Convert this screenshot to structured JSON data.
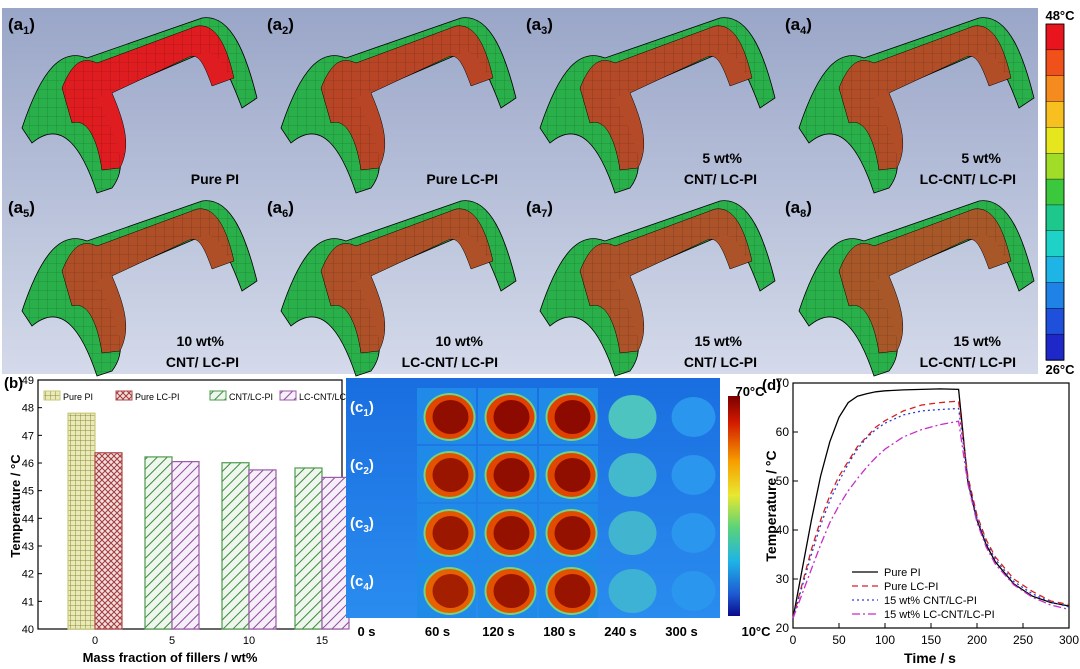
{
  "panel_a": {
    "colorbar": {
      "max_label": "48°C",
      "min_label": "26°C",
      "colors": [
        "#e8141e",
        "#f0501a",
        "#f58a1e",
        "#f7c020",
        "#e6e61e",
        "#a0dc28",
        "#3cc83c",
        "#1ec88c",
        "#1ed2c8",
        "#1eb4e6",
        "#1e82e6",
        "#1e50dc",
        "#1e28c8"
      ]
    },
    "tiles": [
      {
        "letter": "a",
        "sub": "1",
        "line1": "",
        "line2": "Pure PI",
        "hot": 0.95
      },
      {
        "letter": "a",
        "sub": "2",
        "line1": "",
        "line2": "Pure LC-PI",
        "hot": 0.72
      },
      {
        "letter": "a",
        "sub": "3",
        "line1": "5 wt%",
        "line2": "CNT/ LC-PI",
        "hot": 0.7
      },
      {
        "letter": "a",
        "sub": "4",
        "line1": "5 wt%",
        "line2": "LC-CNT/ LC-PI",
        "hot": 0.68
      },
      {
        "letter": "a",
        "sub": "5",
        "line1": "10 wt%",
        "line2": "CNT/ LC-PI",
        "hot": 0.67
      },
      {
        "letter": "a",
        "sub": "6",
        "line1": "10 wt%",
        "line2": "LC-CNT/ LC-PI",
        "hot": 0.66
      },
      {
        "letter": "a",
        "sub": "7",
        "line1": "15 wt%",
        "line2": "CNT/ LC-PI",
        "hot": 0.65
      },
      {
        "letter": "a",
        "sub": "8",
        "line1": "15 wt%",
        "line2": "LC-CNT/ LC-PI",
        "hot": 0.63
      }
    ]
  },
  "panel_b": {
    "label": "(b)",
    "chart_data": {
      "type": "bar",
      "xlabel": "Mass fraction of fillers / wt%",
      "ylabel": "Temperature / °C",
      "ylim": [
        40,
        49
      ],
      "yticks": [
        "40",
        "41",
        "42",
        "43",
        "44",
        "45",
        "46",
        "47",
        "48",
        "49"
      ],
      "categories": [
        "0",
        "5",
        "10",
        "15"
      ],
      "series": [
        {
          "name": "Pure PI",
          "values": [
            47.8,
            null,
            null,
            null
          ],
          "color": "#c8c87a",
          "pattern": "grid"
        },
        {
          "name": "Pure LC-PI",
          "values": [
            46.37,
            null,
            null,
            null
          ],
          "color": "#b04a4a",
          "pattern": "cross"
        },
        {
          "name": "CNT/LC-PI",
          "values": [
            null,
            46.22,
            46.01,
            45.82
          ],
          "color": "#4e9a4e",
          "pattern": "diag"
        },
        {
          "name": "LC-CNT/LC-PI",
          "values": [
            null,
            46.05,
            45.75,
            45.48
          ],
          "color": "#9a5aa8",
          "pattern": "diag"
        }
      ],
      "legend": "top"
    }
  },
  "panel_c": {
    "colorbar": {
      "max_label": "70°C",
      "min_label": "10°C"
    },
    "time_labels": [
      "0 s",
      "60 s",
      "120 s",
      "180 s",
      "240 s",
      "300 s"
    ],
    "rows": [
      {
        "letter": "c",
        "sub": "1",
        "levels": [
          0.0,
          0.95,
          1.0,
          1.0,
          0.25,
          0.08
        ]
      },
      {
        "letter": "c",
        "sub": "2",
        "levels": [
          0.0,
          0.85,
          0.95,
          0.95,
          0.18,
          0.06
        ]
      },
      {
        "letter": "c",
        "sub": "3",
        "levels": [
          0.0,
          0.82,
          0.9,
          0.9,
          0.16,
          0.05
        ]
      },
      {
        "letter": "c",
        "sub": "4",
        "levels": [
          0.0,
          0.72,
          0.85,
          0.86,
          0.14,
          0.05
        ]
      }
    ]
  },
  "panel_d": {
    "label": "(d)",
    "chart_data": {
      "type": "line",
      "xlabel": "Time / s",
      "ylabel": "Temperature / °C",
      "xlim": [
        0,
        300
      ],
      "ylim": [
        20,
        70
      ],
      "xticks": [
        "0",
        "50",
        "100",
        "150",
        "200",
        "250",
        "300"
      ],
      "yticks": [
        "20",
        "30",
        "40",
        "50",
        "60",
        "70"
      ],
      "series": [
        {
          "name": "Pure PI",
          "color": "#000000",
          "dash": "",
          "x": [
            0,
            10,
            20,
            30,
            40,
            50,
            60,
            70,
            80,
            90,
            100,
            120,
            140,
            160,
            180,
            190,
            200,
            210,
            220,
            240,
            260,
            280,
            300
          ],
          "y": [
            22,
            32,
            42,
            51,
            58,
            63,
            66,
            67.3,
            67.8,
            68.2,
            68.4,
            68.6,
            68.7,
            68.8,
            68.7,
            50,
            42,
            37,
            33.5,
            29,
            26.5,
            25.2,
            24.5
          ]
        },
        {
          "name": "Pure LC-PI",
          "color": "#d62020",
          "dash": "6,4",
          "x": [
            0,
            10,
            20,
            30,
            40,
            50,
            60,
            70,
            80,
            90,
            100,
            120,
            140,
            160,
            180,
            190,
            200,
            210,
            220,
            240,
            260,
            280,
            300
          ],
          "y": [
            22,
            29,
            36,
            42,
            47,
            51,
            54,
            57,
            59,
            61,
            62.3,
            64.3,
            65.5,
            66,
            66.3,
            51,
            43,
            38,
            34.5,
            30,
            27.5,
            25.5,
            24.8
          ]
        },
        {
          "name": "15 wt% CNT/LC-PI",
          "color": "#2a3fcf",
          "dash": "2,3",
          "x": [
            0,
            10,
            20,
            30,
            40,
            50,
            60,
            70,
            80,
            90,
            100,
            120,
            140,
            160,
            180,
            190,
            200,
            210,
            220,
            240,
            260,
            280,
            300
          ],
          "y": [
            22,
            28.5,
            35,
            41,
            46,
            50,
            53.5,
            56.5,
            58.8,
            60.5,
            61.8,
            63.5,
            64.3,
            64.6,
            64.8,
            50.5,
            42.5,
            37.5,
            34,
            29.5,
            27,
            25.3,
            24.3
          ]
        },
        {
          "name": "15 wt% LC-CNT/LC-PI",
          "color": "#c82cc8",
          "dash": "8,3,2,3",
          "x": [
            0,
            10,
            20,
            30,
            40,
            50,
            60,
            70,
            80,
            90,
            100,
            120,
            140,
            160,
            180,
            190,
            200,
            210,
            220,
            240,
            260,
            280,
            300
          ],
          "y": [
            22,
            27,
            32,
            37,
            41.5,
            45,
            48,
            50.5,
            52.8,
            54.8,
            56.5,
            59,
            60.5,
            61.5,
            62.2,
            49.5,
            41.5,
            36.5,
            33,
            28.8,
            26.3,
            24.7,
            23.8
          ]
        }
      ],
      "legend": "bottom-right"
    }
  }
}
